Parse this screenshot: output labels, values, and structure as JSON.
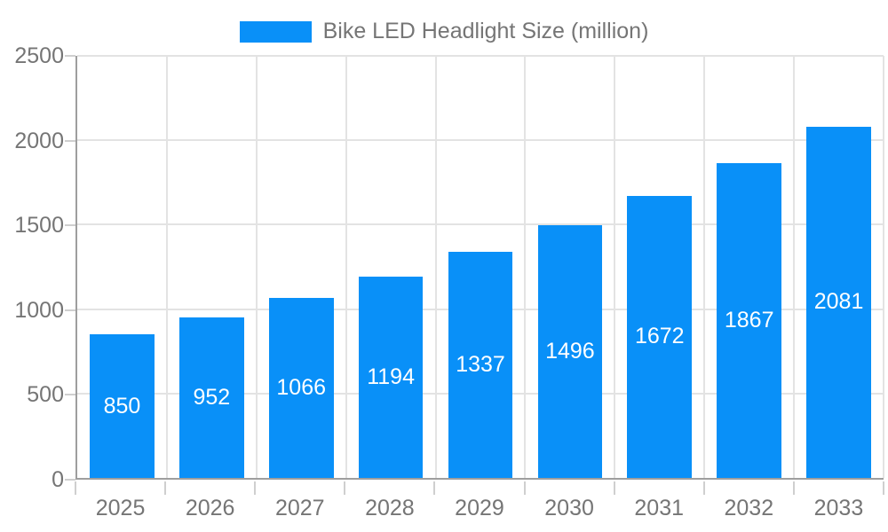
{
  "legend": {
    "label": "Bike LED Headlight Size (million)"
  },
  "chart_data": {
    "type": "bar",
    "title": "Bike LED Headlight Size (million)",
    "categories": [
      "2025",
      "2026",
      "2027",
      "2028",
      "2029",
      "2030",
      "2031",
      "2032",
      "2033"
    ],
    "values": [
      850,
      952,
      1066,
      1194,
      1337,
      1496,
      1672,
      1867,
      2081
    ],
    "xlabel": "",
    "ylabel": "",
    "ylim": [
      0,
      2500
    ],
    "ytick_step": 500,
    "grid": true,
    "legend_position": "top-center",
    "colors": {
      "bar": "#0990f8",
      "value_label": "#ffffff",
      "axis_text": "#757575",
      "gridline": "#e3e3e3",
      "axis_line": "#9e9e9e",
      "tick": "#cfcfcf"
    }
  }
}
